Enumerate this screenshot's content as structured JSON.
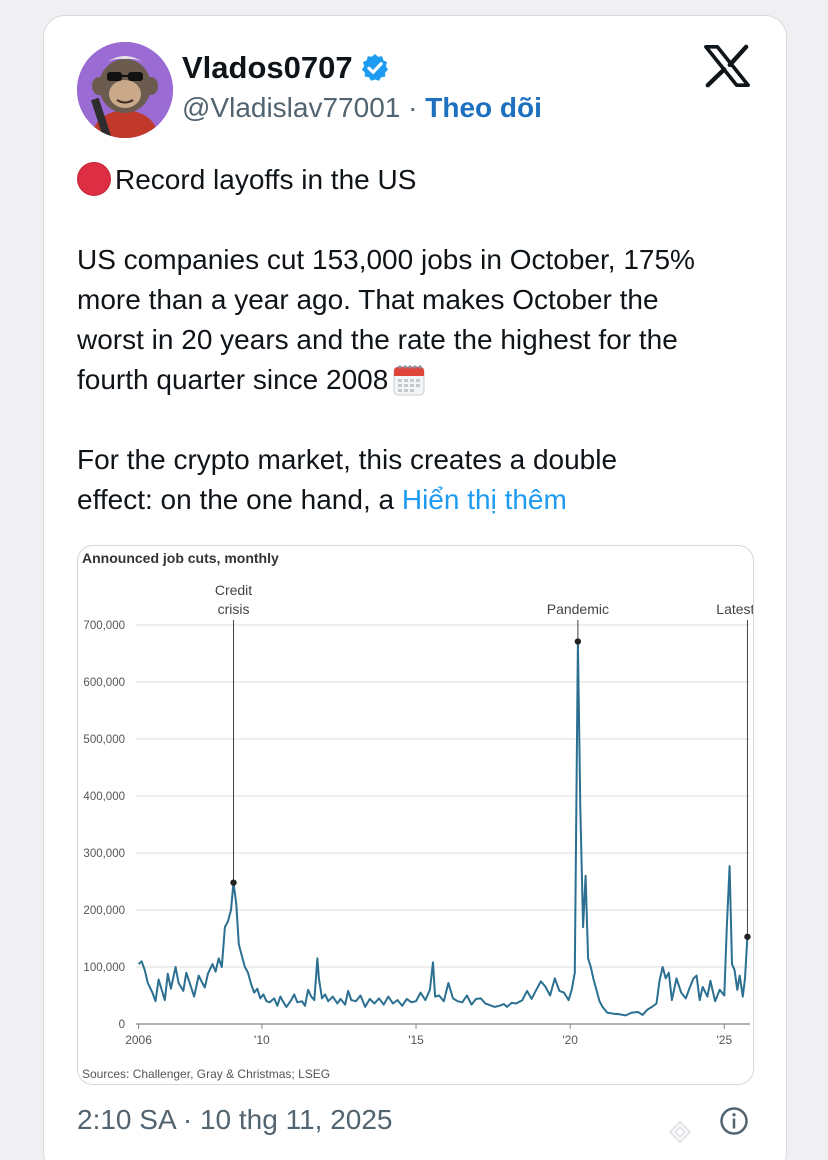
{
  "tweet": {
    "display_name": "Vlados0707",
    "handle": "@Vladislav77001",
    "separator": "·",
    "follow_label": "Theo dõi",
    "headline": "Record layoffs in the US",
    "lines": [
      "US companies cut 153,000 jobs in October, 175%",
      "more than a year ago. That makes October the",
      "worst in 20 years and the rate the highest for the",
      "fourth quarter since 2008"
    ],
    "lines2": [
      "For the crypto market, this creates a double",
      "effect: on the one hand, a "
    ],
    "show_more": "Hiển thị thêm",
    "timestamp": "2:10 SA · 10 thg 11, 2025"
  },
  "icons": {
    "verified": "verified-badge-icon",
    "platform": "x-logo-icon",
    "headline": "red-circle-icon",
    "calendar": "calendar-icon",
    "info": "info-icon"
  },
  "colors": {
    "accent": "#1d9bf0",
    "follow": "#1d6fc0",
    "line": "#2b6f91",
    "red_dot": "#dd2e44"
  },
  "chart_data": {
    "type": "line",
    "title": "Announced job cuts, monthly",
    "source": "Sources: Challenger, Gray & Christmas; LSEG",
    "x_ticks": [
      "2006",
      "'10",
      "'15",
      "'20",
      "'25"
    ],
    "x_tick_years": [
      2006,
      2010,
      2015,
      2020,
      2025
    ],
    "y_ticks": [
      "700,000",
      "600,000",
      "500,000",
      "400,000",
      "300,000",
      "200,000",
      "100,000",
      "0"
    ],
    "y_tick_values": [
      700000,
      600000,
      500000,
      400000,
      300000,
      200000,
      100000,
      0
    ],
    "ylim": [
      0,
      700000
    ],
    "xlim": [
      2005.917,
      2025.833
    ],
    "grid": true,
    "annotations": [
      {
        "label_lines": [
          "Credit",
          "crisis"
        ],
        "x": 2009.08,
        "y": 248000
      },
      {
        "label_lines": [
          "Pandemic"
        ],
        "x": 2020.25,
        "y": 671000
      },
      {
        "label_lines": [
          "Latest"
        ],
        "x": 2025.75,
        "y": 153000
      }
    ],
    "series": [
      {
        "values": [
          [
            2006.0,
            105000
          ],
          [
            2006.1,
            110000
          ],
          [
            2006.2,
            95000
          ],
          [
            2006.3,
            72000
          ],
          [
            2006.45,
            55000
          ],
          [
            2006.55,
            40000
          ],
          [
            2006.65,
            78000
          ],
          [
            2006.75,
            60000
          ],
          [
            2006.85,
            42000
          ],
          [
            2006.95,
            88000
          ],
          [
            2007.05,
            62000
          ],
          [
            2007.2,
            100000
          ],
          [
            2007.3,
            72000
          ],
          [
            2007.45,
            58000
          ],
          [
            2007.55,
            90000
          ],
          [
            2007.7,
            65000
          ],
          [
            2007.8,
            48000
          ],
          [
            2007.95,
            85000
          ],
          [
            2008.05,
            74000
          ],
          [
            2008.15,
            64000
          ],
          [
            2008.25,
            88000
          ],
          [
            2008.4,
            105000
          ],
          [
            2008.5,
            92000
          ],
          [
            2008.6,
            115000
          ],
          [
            2008.7,
            100000
          ],
          [
            2008.8,
            170000
          ],
          [
            2008.9,
            180000
          ],
          [
            2009.0,
            200000
          ],
          [
            2009.08,
            248000
          ],
          [
            2009.17,
            210000
          ],
          [
            2009.25,
            140000
          ],
          [
            2009.35,
            120000
          ],
          [
            2009.45,
            100000
          ],
          [
            2009.55,
            90000
          ],
          [
            2009.65,
            70000
          ],
          [
            2009.75,
            55000
          ],
          [
            2009.85,
            62000
          ],
          [
            2009.95,
            45000
          ],
          [
            2010.05,
            52000
          ],
          [
            2010.15,
            40000
          ],
          [
            2010.25,
            38000
          ],
          [
            2010.4,
            45000
          ],
          [
            2010.5,
            32000
          ],
          [
            2010.6,
            48000
          ],
          [
            2010.7,
            38000
          ],
          [
            2010.8,
            30000
          ],
          [
            2010.95,
            42000
          ],
          [
            2011.05,
            52000
          ],
          [
            2011.15,
            38000
          ],
          [
            2011.3,
            40000
          ],
          [
            2011.4,
            32000
          ],
          [
            2011.5,
            60000
          ],
          [
            2011.6,
            48000
          ],
          [
            2011.7,
            42000
          ],
          [
            2011.8,
            115000
          ],
          [
            2011.85,
            80000
          ],
          [
            2011.95,
            45000
          ],
          [
            2012.05,
            52000
          ],
          [
            2012.15,
            40000
          ],
          [
            2012.3,
            48000
          ],
          [
            2012.45,
            36000
          ],
          [
            2012.55,
            44000
          ],
          [
            2012.7,
            34000
          ],
          [
            2012.8,
            58000
          ],
          [
            2012.9,
            42000
          ],
          [
            2013.05,
            40000
          ],
          [
            2013.2,
            50000
          ],
          [
            2013.35,
            30000
          ],
          [
            2013.5,
            44000
          ],
          [
            2013.65,
            36000
          ],
          [
            2013.8,
            45000
          ],
          [
            2013.95,
            34000
          ],
          [
            2014.1,
            48000
          ],
          [
            2014.25,
            36000
          ],
          [
            2014.4,
            42000
          ],
          [
            2014.55,
            32000
          ],
          [
            2014.7,
            44000
          ],
          [
            2014.85,
            38000
          ],
          [
            2015.0,
            40000
          ],
          [
            2015.15,
            55000
          ],
          [
            2015.3,
            42000
          ],
          [
            2015.45,
            60000
          ],
          [
            2015.55,
            108000
          ],
          [
            2015.62,
            48000
          ],
          [
            2015.75,
            50000
          ],
          [
            2015.9,
            40000
          ],
          [
            2016.05,
            72000
          ],
          [
            2016.2,
            45000
          ],
          [
            2016.35,
            40000
          ],
          [
            2016.5,
            38000
          ],
          [
            2016.65,
            50000
          ],
          [
            2016.8,
            34000
          ],
          [
            2016.95,
            44000
          ],
          [
            2017.1,
            45000
          ],
          [
            2017.25,
            36000
          ],
          [
            2017.4,
            33000
          ],
          [
            2017.55,
            30000
          ],
          [
            2017.7,
            32000
          ],
          [
            2017.85,
            35000
          ],
          [
            2017.95,
            30000
          ],
          [
            2018.1,
            37000
          ],
          [
            2018.25,
            36000
          ],
          [
            2018.45,
            42000
          ],
          [
            2018.6,
            58000
          ],
          [
            2018.75,
            44000
          ],
          [
            2018.9,
            60000
          ],
          [
            2019.05,
            75000
          ],
          [
            2019.2,
            65000
          ],
          [
            2019.35,
            50000
          ],
          [
            2019.5,
            80000
          ],
          [
            2019.65,
            58000
          ],
          [
            2019.8,
            55000
          ],
          [
            2019.95,
            42000
          ],
          [
            2020.05,
            60000
          ],
          [
            2020.15,
            90000
          ],
          [
            2020.25,
            671000
          ],
          [
            2020.33,
            380000
          ],
          [
            2020.42,
            170000
          ],
          [
            2020.5,
            260000
          ],
          [
            2020.58,
            115000
          ],
          [
            2020.67,
            100000
          ],
          [
            2020.75,
            80000
          ],
          [
            2020.85,
            60000
          ],
          [
            2020.95,
            40000
          ],
          [
            2021.05,
            30000
          ],
          [
            2021.2,
            20000
          ],
          [
            2021.4,
            18000
          ],
          [
            2021.6,
            17000
          ],
          [
            2021.8,
            15000
          ],
          [
            2022.0,
            20000
          ],
          [
            2022.2,
            21000
          ],
          [
            2022.35,
            16000
          ],
          [
            2022.5,
            25000
          ],
          [
            2022.65,
            30000
          ],
          [
            2022.8,
            36000
          ],
          [
            2022.9,
            77000
          ],
          [
            2023.0,
            100000
          ],
          [
            2023.1,
            80000
          ],
          [
            2023.2,
            90000
          ],
          [
            2023.3,
            42000
          ],
          [
            2023.45,
            80000
          ],
          [
            2023.6,
            55000
          ],
          [
            2023.75,
            45000
          ],
          [
            2023.85,
            60000
          ],
          [
            2024.0,
            80000
          ],
          [
            2024.1,
            85000
          ],
          [
            2024.2,
            42000
          ],
          [
            2024.3,
            65000
          ],
          [
            2024.45,
            48000
          ],
          [
            2024.55,
            76000
          ],
          [
            2024.7,
            40000
          ],
          [
            2024.85,
            60000
          ],
          [
            2025.0,
            50000
          ],
          [
            2025.08,
            170000
          ],
          [
            2025.17,
            277000
          ],
          [
            2025.25,
            105000
          ],
          [
            2025.33,
            95000
          ],
          [
            2025.42,
            60000
          ],
          [
            2025.5,
            85000
          ],
          [
            2025.6,
            48000
          ],
          [
            2025.67,
            80000
          ],
          [
            2025.75,
            153000
          ]
        ]
      }
    ]
  }
}
